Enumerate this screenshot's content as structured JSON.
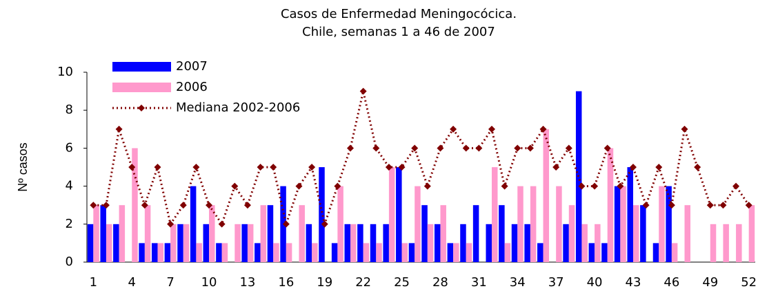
{
  "chart_data": {
    "type": "bar",
    "title": "Casos de Enfermedad Meningocócica.",
    "subtitle": "Chile, semanas 1 a 46 de 2007",
    "y_label": "Nº casos",
    "categories": [
      "1",
      null,
      null,
      "4",
      null,
      null,
      "7",
      null,
      null,
      "10",
      null,
      null,
      "13",
      null,
      null,
      "16",
      null,
      null,
      "19",
      null,
      null,
      "22",
      null,
      null,
      "25",
      null,
      null,
      "28",
      null,
      null,
      "31",
      null,
      null,
      "34",
      null,
      null,
      "37",
      null,
      null,
      "40",
      null,
      null,
      "43",
      null,
      null,
      "46",
      null,
      null,
      "49",
      null,
      null,
      "52"
    ],
    "series": [
      {
        "name": "2007",
        "type": "bar",
        "color": "#0000ff",
        "values": [
          2,
          3,
          2,
          0,
          1,
          1,
          1,
          2,
          4,
          2,
          1,
          0,
          2,
          1,
          3,
          4,
          0,
          2,
          5,
          1,
          2,
          2,
          2,
          2,
          5,
          1,
          3,
          2,
          1,
          2,
          3,
          2,
          3,
          2,
          2,
          1,
          0,
          2,
          9,
          1,
          1,
          4,
          5,
          3,
          1,
          4,
          null,
          null,
          null,
          null,
          null,
          null
        ]
      },
      {
        "name": "2006",
        "type": "bar",
        "color": "#ff99cc",
        "values": [
          3,
          2,
          3,
          6,
          3,
          1,
          2,
          2,
          1,
          3,
          1,
          2,
          2,
          3,
          1,
          1,
          3,
          1,
          0,
          4,
          2,
          1,
          1,
          5,
          1,
          4,
          2,
          3,
          1,
          1,
          0,
          5,
          1,
          4,
          4,
          7,
          4,
          3,
          2,
          2,
          6,
          4,
          3,
          0,
          4,
          1,
          3,
          0,
          2,
          2,
          2,
          3
        ]
      },
      {
        "name": "Mediana 2002-2006",
        "type": "line",
        "color": "#800000",
        "values": [
          3,
          3,
          7,
          5,
          3,
          5,
          2,
          3,
          5,
          3,
          2,
          4,
          3,
          5,
          5,
          2,
          4,
          5,
          2,
          4,
          6,
          9,
          6,
          5,
          5,
          6,
          4,
          6,
          7,
          6,
          6,
          7,
          4,
          6,
          6,
          7,
          5,
          6,
          4,
          4,
          6,
          4,
          5,
          3,
          5,
          3,
          7,
          5,
          3,
          3,
          4,
          3
        ]
      }
    ],
    "ylim": [
      0,
      10
    ],
    "yticks": [
      0,
      2,
      4,
      6,
      8,
      10
    ],
    "grid": false,
    "legend": "upper-left"
  }
}
